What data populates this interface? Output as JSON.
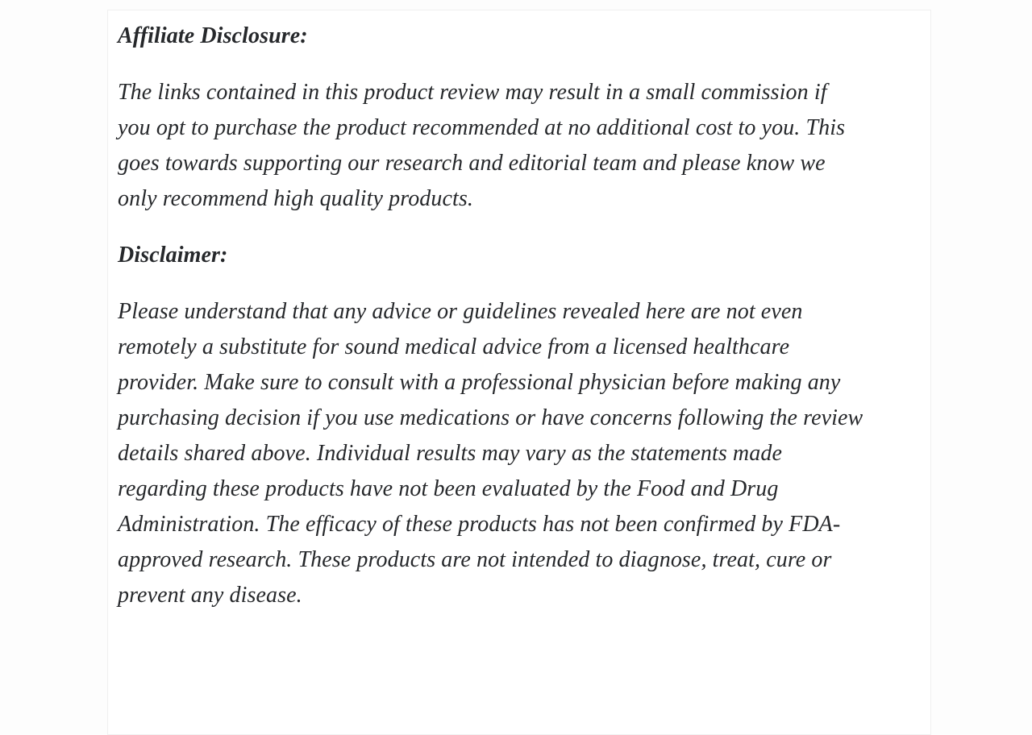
{
  "page": {
    "background_color": "#fdfdfd",
    "card_background_color": "#ffffff",
    "card_border_color": "#f0f0f0",
    "text_color": "#26282b"
  },
  "article": {
    "sections": [
      {
        "heading": "Affiliate Disclosure:",
        "paragraph_full_text": "The links contained in this product review may result in a small commission if you opt to purchase the product recommended at no additional cost to you. This goes towards supporting our research and editorial team and please know we only recommend high quality products.",
        "paragraph_lines": [
          "The links contained in this product review may result in a small commission if",
          "you opt to purchase the product recommended at no additional cost to you. This",
          "goes towards supporting our research and editorial team and please know we",
          "only recommend high quality products."
        ]
      },
      {
        "heading": "Disclaimer:",
        "paragraph_full_text": "Please understand that any advice or guidelines revealed here are not even remotely a substitute for sound medical advice from a licensed healthcare provider. Make sure to consult with a professional physician before making any purchasing decision if you use medications or have concerns following the review details shared above. Individual results may vary as the statements made regarding these products have not been evaluated by the Food and Drug Administration. The efficacy of these products has not been confirmed by FDA-approved research. These products are not intended to diagnose, treat, cure or prevent any disease.",
        "paragraph_lines": [
          "Please understand that any advice or guidelines revealed here are not even",
          "remotely a substitute for sound medical advice from a licensed healthcare",
          "provider. Make sure to consult with a professional physician before making any",
          "purchasing decision if you use medications or have concerns following the review",
          "details shared above. Individual results may vary as the statements made",
          "regarding these products have not been evaluated by the Food and Drug",
          "Administration. The efficacy of these products has not been confirmed by FDA-",
          "approved research. These products are not intended to diagnose, treat, cure or",
          "prevent any disease."
        ]
      }
    ]
  }
}
